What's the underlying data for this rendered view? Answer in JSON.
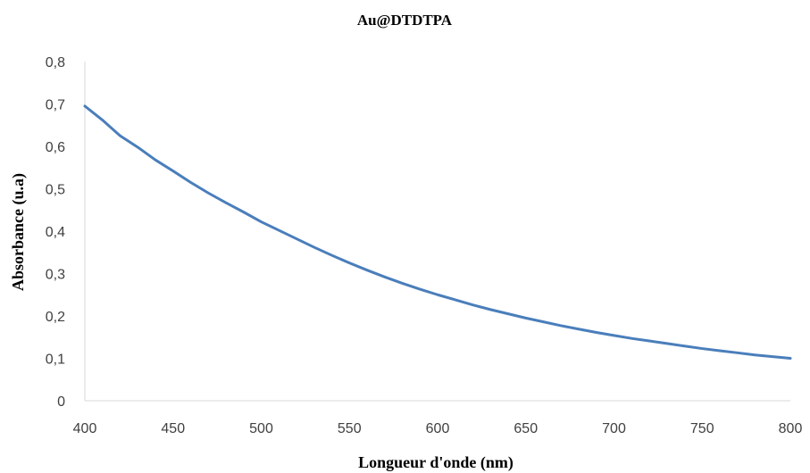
{
  "chart_data": {
    "type": "line",
    "title": "Au@DTDTPA",
    "xlabel": "Longueur d'onde (nm)",
    "ylabel": "Absorbance (u.a)",
    "xlim": [
      400,
      800
    ],
    "ylim": [
      0,
      0.8
    ],
    "x_ticks": [
      "400",
      "450",
      "500",
      "550",
      "600",
      "650",
      "700",
      "750",
      "800"
    ],
    "y_ticks": [
      "0",
      "0,1",
      "0,2",
      "0,3",
      "0,4",
      "0,5",
      "0,6",
      "0,7",
      "0,8"
    ],
    "grid": false,
    "legend": "none",
    "series": [
      {
        "color": "#4a7ebb",
        "x": [
          400,
          410,
          420,
          430,
          440,
          450,
          460,
          470,
          480,
          490,
          500,
          510,
          520,
          530,
          540,
          550,
          560,
          570,
          580,
          590,
          600,
          610,
          620,
          630,
          640,
          650,
          660,
          670,
          680,
          690,
          700,
          710,
          720,
          730,
          740,
          750,
          760,
          770,
          780,
          790,
          800
        ],
        "values": [
          0.695,
          0.662,
          0.625,
          0.598,
          0.568,
          0.542,
          0.515,
          0.49,
          0.467,
          0.445,
          0.422,
          0.402,
          0.382,
          0.362,
          0.343,
          0.325,
          0.308,
          0.292,
          0.277,
          0.263,
          0.25,
          0.238,
          0.226,
          0.215,
          0.205,
          0.195,
          0.186,
          0.177,
          0.169,
          0.161,
          0.154,
          0.147,
          0.141,
          0.135,
          0.129,
          0.123,
          0.118,
          0.113,
          0.108,
          0.104,
          0.1
        ]
      }
    ]
  }
}
